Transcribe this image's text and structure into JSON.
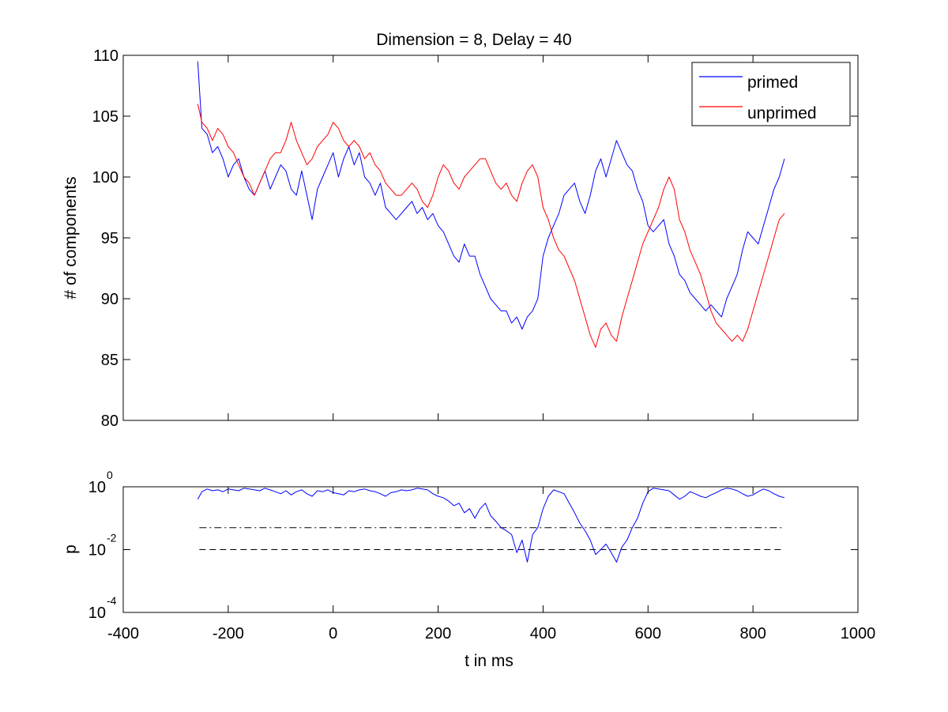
{
  "chart_data": [
    {
      "type": "line",
      "title": "Dimension  = 8, Delay = 40",
      "xlabel": "",
      "ylabel": "# of components",
      "xlim": [
        -400,
        1000
      ],
      "ylim": [
        80,
        110
      ],
      "yticks": [
        80,
        85,
        90,
        95,
        100,
        105,
        110
      ],
      "xticks_labels_shown": false,
      "legend": {
        "placement": "top-right",
        "entries": [
          "primed",
          "unprimed"
        ]
      },
      "grid": false,
      "colors": {
        "primed": "#0000ff",
        "unprimed": "#ff0000"
      },
      "series": [
        {
          "name": "primed",
          "x": [
            -258,
            -250,
            -240,
            -230,
            -220,
            -210,
            -200,
            -190,
            -180,
            -170,
            -160,
            -150,
            -140,
            -130,
            -120,
            -110,
            -100,
            -90,
            -80,
            -70,
            -60,
            -50,
            -40,
            -30,
            -20,
            -10,
            0,
            10,
            20,
            30,
            40,
            50,
            60,
            70,
            80,
            90,
            100,
            110,
            120,
            130,
            140,
            150,
            160,
            170,
            180,
            190,
            200,
            210,
            220,
            230,
            240,
            250,
            260,
            270,
            280,
            290,
            300,
            310,
            320,
            330,
            340,
            350,
            360,
            370,
            380,
            390,
            400,
            410,
            420,
            430,
            440,
            450,
            460,
            470,
            480,
            490,
            500,
            510,
            520,
            530,
            540,
            550,
            560,
            570,
            580,
            590,
            600,
            610,
            620,
            630,
            640,
            650,
            660,
            670,
            680,
            690,
            700,
            710,
            720,
            730,
            740,
            750,
            760,
            770,
            780,
            790,
            800,
            810,
            820,
            830,
            840,
            850,
            860
          ],
          "values": [
            109.5,
            104,
            103.5,
            102,
            102.5,
            101.5,
            100,
            101,
            101.5,
            100,
            99,
            98.5,
            99.5,
            100.5,
            99,
            100,
            101,
            100.5,
            99,
            98.5,
            100.5,
            98.5,
            96.5,
            99,
            100,
            101,
            102,
            100,
            101.5,
            102.5,
            101,
            102,
            100,
            99.5,
            98.5,
            99.5,
            97.5,
            97,
            96.5,
            97,
            97.5,
            98,
            97,
            97.5,
            96.5,
            97,
            96,
            95.5,
            94.5,
            93.5,
            93,
            94.5,
            93.5,
            93.5,
            92,
            91,
            90,
            89.5,
            89,
            89,
            88,
            88.5,
            87.5,
            88.5,
            89,
            90,
            93.5,
            95,
            96,
            97,
            98.5,
            99,
            99.5,
            98,
            97,
            98.5,
            100.5,
            101.5,
            100,
            101.5,
            103,
            102,
            101,
            100.5,
            99,
            98,
            96,
            95.5,
            96,
            96.5,
            94.5,
            93.5,
            92,
            91.5,
            90.5,
            90,
            89.5,
            89,
            89.5,
            89,
            88.5,
            90,
            91,
            92,
            94,
            95.5,
            95,
            94.5,
            96,
            97.5,
            99,
            100,
            101.5
          ]
        },
        {
          "name": "unprimed",
          "x": [
            -258,
            -250,
            -240,
            -230,
            -220,
            -210,
            -200,
            -190,
            -180,
            -170,
            -160,
            -150,
            -140,
            -130,
            -120,
            -110,
            -100,
            -90,
            -80,
            -70,
            -60,
            -50,
            -40,
            -30,
            -20,
            -10,
            0,
            10,
            20,
            30,
            40,
            50,
            60,
            70,
            80,
            90,
            100,
            110,
            120,
            130,
            140,
            150,
            160,
            170,
            180,
            190,
            200,
            210,
            220,
            230,
            240,
            250,
            260,
            270,
            280,
            290,
            300,
            310,
            320,
            330,
            340,
            350,
            360,
            370,
            380,
            390,
            400,
            410,
            420,
            430,
            440,
            450,
            460,
            470,
            480,
            490,
            500,
            510,
            520,
            530,
            540,
            550,
            560,
            570,
            580,
            590,
            600,
            610,
            620,
            630,
            640,
            650,
            660,
            670,
            680,
            690,
            700,
            710,
            720,
            730,
            740,
            750,
            760,
            770,
            780,
            790,
            800,
            810,
            820,
            830,
            840,
            850,
            860
          ],
          "values": [
            106,
            104.5,
            104,
            103,
            104,
            103.5,
            102.5,
            102,
            101,
            100,
            99.5,
            98.5,
            99.5,
            100.5,
            101.5,
            102,
            102,
            103,
            104.5,
            103,
            102,
            101,
            101.5,
            102.5,
            103,
            103.5,
            104.5,
            104,
            103,
            102.5,
            103,
            102.5,
            101.5,
            102,
            101,
            100.5,
            99.5,
            99,
            98.5,
            98.5,
            99,
            99.5,
            99,
            98,
            97.5,
            98.5,
            100,
            101,
            100.5,
            99.5,
            99,
            100,
            100.5,
            101,
            101.5,
            101.5,
            100.5,
            99.5,
            99,
            99.5,
            98.5,
            98,
            99.5,
            100.5,
            101,
            100,
            97.5,
            96.5,
            95,
            94,
            93.5,
            92.5,
            91.5,
            90,
            88.5,
            87,
            86,
            87.5,
            88,
            87,
            86.5,
            88.5,
            90,
            91.5,
            93,
            94.5,
            95.5,
            96.5,
            97.5,
            99,
            100,
            99,
            96.5,
            95.5,
            94,
            93,
            92,
            90.5,
            89,
            88,
            87.5,
            87,
            86.5,
            87,
            86.5,
            87.5,
            89,
            90.5,
            92,
            93.5,
            95,
            96.5,
            97
          ]
        }
      ]
    },
    {
      "type": "line",
      "title": "",
      "xlabel": "t in ms",
      "ylabel": "p",
      "xlim": [
        -400,
        1000
      ],
      "xticks": [
        -400,
        -200,
        0,
        200,
        400,
        600,
        800,
        1000
      ],
      "yscale": "log",
      "ylim": [
        0.0001,
        1
      ],
      "ytick_base": "10",
      "ytick_exponents": [
        "0",
        "-2",
        "-4"
      ],
      "grid": false,
      "reference_lines": [
        {
          "y": 0.05,
          "style": "dash-dot",
          "x_range": [
            -255,
            860
          ]
        },
        {
          "y": 0.01,
          "style": "dashed",
          "x_range": [
            -255,
            855
          ]
        }
      ],
      "series": [
        {
          "name": "",
          "x": [
            -258,
            -250,
            -240,
            -230,
            -220,
            -210,
            -200,
            -190,
            -180,
            -170,
            -160,
            -150,
            -140,
            -130,
            -120,
            -110,
            -100,
            -90,
            -80,
            -70,
            -60,
            -50,
            -40,
            -30,
            -20,
            -10,
            0,
            10,
            20,
            30,
            40,
            50,
            60,
            70,
            80,
            90,
            100,
            110,
            120,
            130,
            140,
            150,
            160,
            170,
            180,
            190,
            200,
            210,
            220,
            230,
            240,
            250,
            260,
            270,
            280,
            290,
            300,
            310,
            320,
            330,
            340,
            350,
            360,
            370,
            380,
            390,
            400,
            410,
            420,
            430,
            440,
            450,
            460,
            470,
            480,
            490,
            500,
            510,
            520,
            530,
            540,
            550,
            560,
            570,
            580,
            590,
            600,
            610,
            620,
            630,
            640,
            650,
            660,
            670,
            680,
            690,
            700,
            710,
            720,
            730,
            740,
            750,
            760,
            770,
            780,
            790,
            800,
            810,
            820,
            830,
            840,
            850,
            860
          ],
          "values": [
            0.4,
            0.7,
            0.85,
            0.75,
            0.8,
            0.7,
            0.85,
            0.8,
            0.75,
            0.9,
            0.85,
            0.8,
            0.75,
            0.9,
            0.8,
            0.7,
            0.6,
            0.75,
            0.55,
            0.7,
            0.8,
            0.6,
            0.5,
            0.75,
            0.7,
            0.8,
            0.65,
            0.6,
            0.55,
            0.75,
            0.7,
            0.8,
            0.85,
            0.75,
            0.7,
            0.6,
            0.5,
            0.65,
            0.7,
            0.8,
            0.75,
            0.8,
            0.9,
            0.85,
            0.8,
            0.6,
            0.5,
            0.45,
            0.35,
            0.25,
            0.3,
            0.15,
            0.2,
            0.1,
            0.2,
            0.3,
            0.12,
            0.08,
            0.05,
            0.04,
            0.03,
            0.008,
            0.02,
            0.004,
            0.03,
            0.05,
            0.2,
            0.5,
            0.8,
            0.7,
            0.6,
            0.3,
            0.15,
            0.07,
            0.04,
            0.02,
            0.007,
            0.01,
            0.015,
            0.008,
            0.004,
            0.012,
            0.02,
            0.05,
            0.1,
            0.3,
            0.7,
            0.9,
            0.85,
            0.8,
            0.75,
            0.55,
            0.4,
            0.5,
            0.7,
            0.6,
            0.5,
            0.45,
            0.55,
            0.65,
            0.8,
            0.9,
            0.85,
            0.75,
            0.6,
            0.5,
            0.55,
            0.7,
            0.85,
            0.75,
            0.6,
            0.5,
            0.45
          ]
        }
      ]
    }
  ]
}
